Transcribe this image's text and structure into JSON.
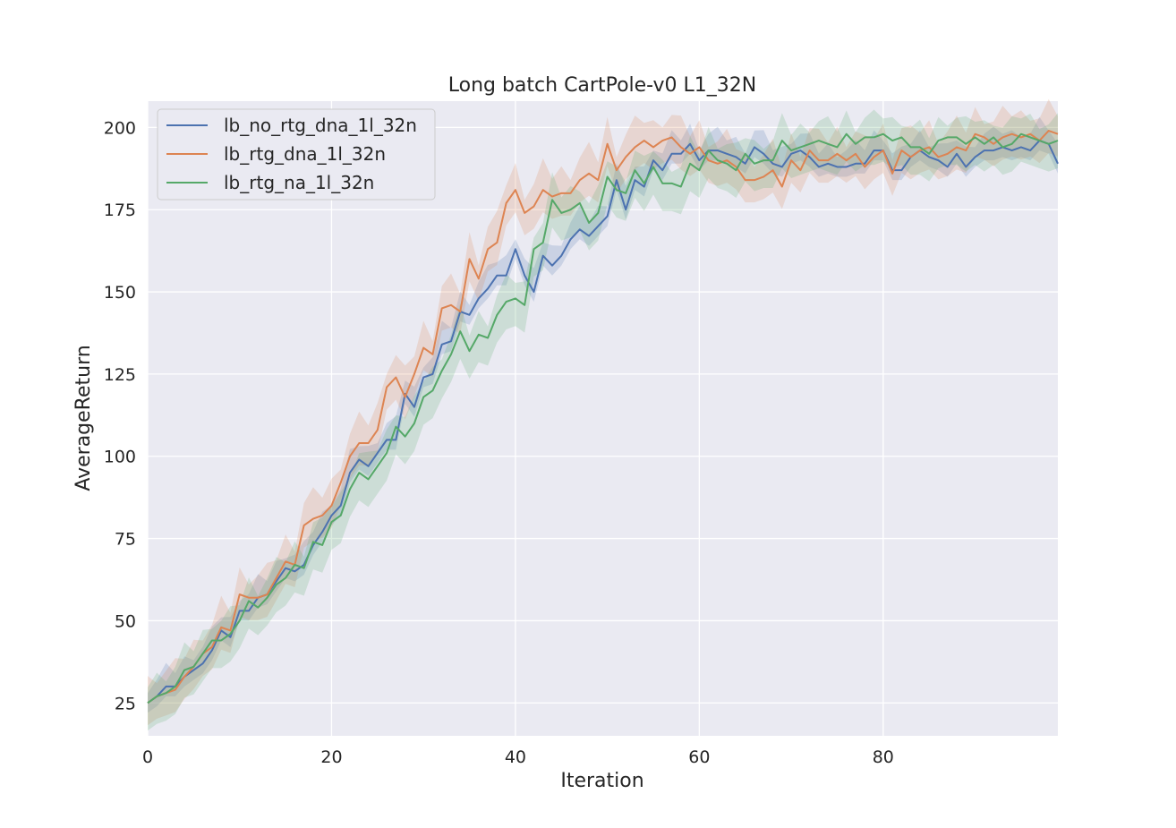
{
  "chart_data": {
    "type": "line",
    "title": "Long batch CartPole-v0 L1_32N",
    "xlabel": "Iteration",
    "ylabel": "AverageReturn",
    "xlim": [
      0,
      99
    ],
    "ylim": [
      15,
      208
    ],
    "xticks": [
      0,
      20,
      40,
      60,
      80
    ],
    "yticks": [
      25,
      50,
      75,
      100,
      125,
      150,
      175,
      200
    ],
    "grid": true,
    "background": "#eaeaf2",
    "legend_position": "top-left",
    "series": [
      {
        "name": "lb_no_rtg_dna_1l_32n",
        "color": "#4c72b0",
        "band_width": 3,
        "values": [
          25,
          27,
          30,
          30,
          33,
          35,
          37,
          41,
          47,
          45,
          53,
          53,
          57,
          58,
          62,
          66,
          65,
          67,
          73,
          77,
          82,
          85,
          95,
          99,
          97,
          101,
          105,
          105,
          119,
          115,
          124,
          125,
          134,
          135,
          144,
          143,
          148,
          151,
          155,
          155,
          163,
          155,
          150,
          161,
          158,
          161,
          166,
          169,
          167,
          170,
          173,
          184,
          175,
          184,
          182,
          190,
          187,
          192,
          192,
          195,
          190,
          193,
          193,
          192,
          191,
          189,
          194,
          192,
          189,
          188,
          192,
          193,
          191,
          188,
          189,
          188,
          188,
          189,
          189,
          193,
          193,
          187,
          187,
          191,
          193,
          191,
          190,
          188,
          192,
          188,
          191,
          193,
          193,
          194,
          193,
          194,
          193,
          196,
          195,
          189
        ]
      },
      {
        "name": "lb_rtg_dna_1l_32n",
        "color": "#dd8452",
        "band_width": 4,
        "values": [
          25,
          27,
          28,
          29,
          33,
          36,
          40,
          42,
          48,
          47,
          58,
          57,
          57,
          58,
          63,
          68,
          67,
          79,
          81,
          82,
          85,
          92,
          100,
          104,
          104,
          108,
          121,
          124,
          118,
          125,
          133,
          131,
          145,
          146,
          144,
          160,
          154,
          163,
          165,
          177,
          181,
          174,
          176,
          181,
          179,
          180,
          180,
          184,
          186,
          184,
          195,
          187,
          191,
          194,
          196,
          194,
          196,
          197,
          194,
          192,
          194,
          190,
          189,
          190,
          188,
          184,
          184,
          185,
          187,
          182,
          190,
          187,
          193,
          190,
          190,
          192,
          190,
          192,
          188,
          191,
          193,
          186,
          193,
          191,
          193,
          194,
          191,
          192,
          194,
          193,
          198,
          197,
          195,
          197,
          198,
          197,
          198,
          196,
          199,
          198
        ]
      },
      {
        "name": "lb_rtg_na_1l_32n",
        "color": "#55a868",
        "band_width": 3.5,
        "values": [
          25,
          27,
          28,
          30,
          35,
          36,
          40,
          44,
          44,
          46,
          50,
          56,
          54,
          57,
          61,
          63,
          67,
          66,
          74,
          73,
          80,
          82,
          90,
          95,
          93,
          97,
          101,
          109,
          106,
          110,
          118,
          120,
          126,
          131,
          138,
          132,
          137,
          136,
          143,
          147,
          148,
          146,
          163,
          165,
          178,
          174,
          175,
          177,
          171,
          174,
          185,
          181,
          180,
          187,
          183,
          188,
          183,
          183,
          182,
          189,
          187,
          193,
          190,
          189,
          187,
          192,
          189,
          190,
          190,
          196,
          193,
          194,
          195,
          196,
          195,
          194,
          198,
          195,
          197,
          197,
          198,
          196,
          197,
          194,
          194,
          192,
          196,
          197,
          197,
          195,
          197,
          195,
          197,
          194,
          195,
          198,
          197,
          196,
          195,
          196
        ]
      }
    ]
  }
}
